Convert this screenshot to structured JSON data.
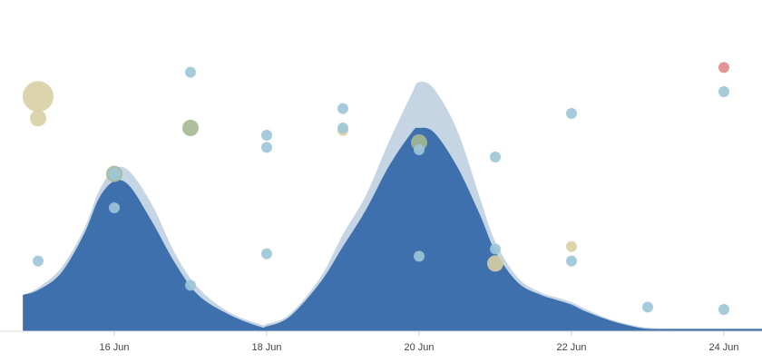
{
  "chart_data": {
    "type": "area",
    "title": "",
    "xlabel": "",
    "ylabel": "",
    "x_ticks": [
      "16 Jun",
      "18 Jun",
      "20 Jun",
      "22 Jun",
      "24 Jun"
    ],
    "colors": {
      "inner_area": "#3e70ad",
      "outer_area": "#c6d5e3",
      "point_blue": "#9cc7d8",
      "point_tan": "#d8cfa4",
      "point_green": "#a4b892",
      "point_red": "#e08a8a",
      "axis": "#dddddd"
    },
    "areas": [
      {
        "role": "outer",
        "x": [
          14.8,
          15.0,
          15.3,
          15.6,
          15.8,
          16.0,
          16.2,
          16.5,
          16.8,
          17.1,
          17.5,
          17.9,
          18.0,
          18.3,
          18.7,
          19.0,
          19.3,
          19.6,
          19.9,
          20.0,
          20.2,
          20.5,
          20.8,
          21.0,
          21.3,
          21.6,
          21.8,
          22.0,
          22.2,
          22.5,
          22.8,
          23.0,
          23.3,
          23.7,
          24.0,
          24.5
        ],
        "y": [
          0.15,
          0.18,
          0.26,
          0.42,
          0.58,
          0.67,
          0.66,
          0.52,
          0.32,
          0.18,
          0.08,
          0.03,
          0.03,
          0.07,
          0.22,
          0.4,
          0.56,
          0.78,
          0.98,
          1.03,
          1.0,
          0.83,
          0.55,
          0.37,
          0.22,
          0.16,
          0.14,
          0.12,
          0.09,
          0.05,
          0.025,
          0.015,
          0.01,
          0.01,
          0.01,
          0.01
        ]
      },
      {
        "role": "inner",
        "x": [
          14.8,
          15.0,
          15.3,
          15.6,
          15.8,
          16.0,
          16.2,
          16.5,
          16.8,
          17.1,
          17.5,
          17.9,
          18.0,
          18.3,
          18.7,
          19.0,
          19.3,
          19.6,
          19.9,
          20.0,
          20.2,
          20.5,
          20.8,
          21.0,
          21.3,
          21.6,
          21.8,
          22.0,
          22.2,
          22.5,
          22.8,
          23.0,
          23.3,
          23.7,
          24.0,
          24.5
        ],
        "y": [
          0.15,
          0.17,
          0.24,
          0.4,
          0.55,
          0.62,
          0.6,
          0.45,
          0.28,
          0.15,
          0.07,
          0.02,
          0.02,
          0.06,
          0.2,
          0.35,
          0.5,
          0.68,
          0.82,
          0.84,
          0.82,
          0.68,
          0.48,
          0.33,
          0.2,
          0.15,
          0.13,
          0.11,
          0.08,
          0.045,
          0.02,
          0.01,
          0.01,
          0.01,
          0.01,
          0.01
        ]
      }
    ],
    "points": [
      {
        "x": 15.0,
        "y": 0.97,
        "size": 17,
        "color": "point_tan"
      },
      {
        "x": 15.0,
        "y": 0.88,
        "size": 9,
        "color": "point_tan"
      },
      {
        "x": 15.0,
        "y": 0.29,
        "size": 6,
        "color": "point_blue"
      },
      {
        "x": 16.0,
        "y": 0.65,
        "size": 9,
        "color": "point_green"
      },
      {
        "x": 16.0,
        "y": 0.65,
        "size": 7,
        "color": "point_blue"
      },
      {
        "x": 16.0,
        "y": 0.51,
        "size": 6,
        "color": "point_blue"
      },
      {
        "x": 17.0,
        "y": 1.07,
        "size": 6,
        "color": "point_blue"
      },
      {
        "x": 17.0,
        "y": 0.84,
        "size": 9,
        "color": "point_green"
      },
      {
        "x": 17.0,
        "y": 0.19,
        "size": 6,
        "color": "point_blue"
      },
      {
        "x": 18.0,
        "y": 0.81,
        "size": 6,
        "color": "point_blue"
      },
      {
        "x": 18.0,
        "y": 0.76,
        "size": 6,
        "color": "point_blue"
      },
      {
        "x": 18.0,
        "y": 0.32,
        "size": 6,
        "color": "point_blue"
      },
      {
        "x": 19.0,
        "y": 0.92,
        "size": 6,
        "color": "point_blue"
      },
      {
        "x": 19.0,
        "y": 0.83,
        "size": 6,
        "color": "point_tan"
      },
      {
        "x": 19.0,
        "y": 0.84,
        "size": 6,
        "color": "point_blue"
      },
      {
        "x": 20.0,
        "y": 0.78,
        "size": 9,
        "color": "point_green"
      },
      {
        "x": 20.0,
        "y": 0.75,
        "size": 6,
        "color": "point_blue"
      },
      {
        "x": 20.0,
        "y": 0.31,
        "size": 6,
        "color": "point_blue"
      },
      {
        "x": 21.0,
        "y": 0.72,
        "size": 6,
        "color": "point_blue"
      },
      {
        "x": 21.0,
        "y": 0.34,
        "size": 6,
        "color": "point_blue"
      },
      {
        "x": 21.0,
        "y": 0.28,
        "size": 9,
        "color": "point_tan"
      },
      {
        "x": 22.0,
        "y": 0.9,
        "size": 6,
        "color": "point_blue"
      },
      {
        "x": 22.0,
        "y": 0.35,
        "size": 6,
        "color": "point_tan"
      },
      {
        "x": 22.0,
        "y": 0.29,
        "size": 6,
        "color": "point_blue"
      },
      {
        "x": 23.0,
        "y": 0.1,
        "size": 6,
        "color": "point_blue"
      },
      {
        "x": 24.0,
        "y": 1.09,
        "size": 6,
        "color": "point_red"
      },
      {
        "x": 24.0,
        "y": 0.99,
        "size": 6,
        "color": "point_blue"
      },
      {
        "x": 24.0,
        "y": 0.09,
        "size": 6,
        "color": "point_blue"
      }
    ],
    "xlim": [
      14.5,
      24.5
    ],
    "ylim": [
      0,
      1.2
    ],
    "grid": false,
    "legend": "none"
  }
}
